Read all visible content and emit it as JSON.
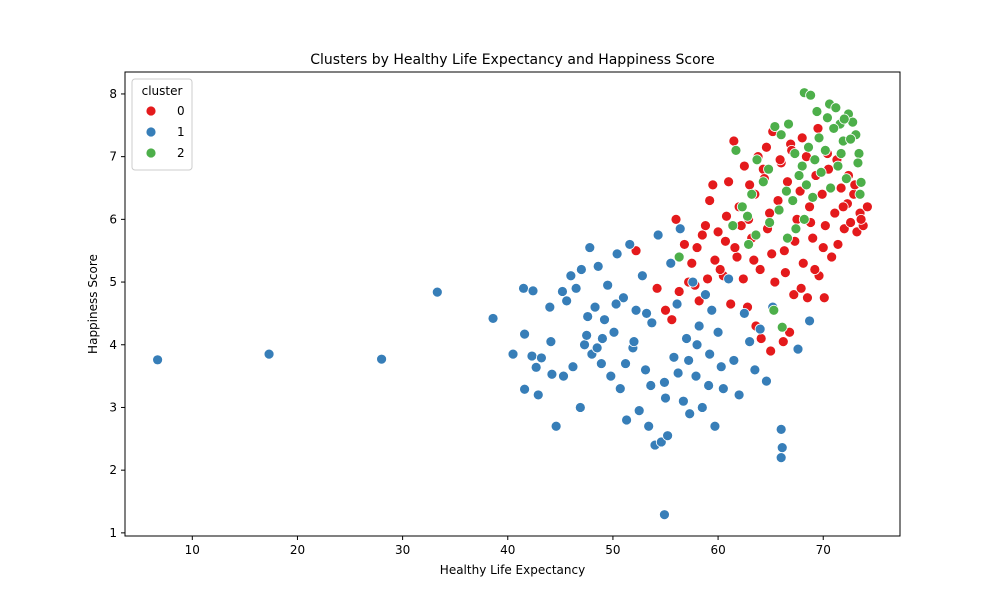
{
  "chart_data": {
    "type": "scatter",
    "title": "Clusters by Healthy Life Expectancy and Happiness Score",
    "xlabel": "Healthy Life Expectancy",
    "ylabel": "Happiness Score",
    "xlim": [
      3.6,
      77.3
    ],
    "ylim": [
      0.95,
      8.35
    ],
    "xticks": [
      10,
      20,
      30,
      40,
      50,
      60,
      70
    ],
    "yticks": [
      1,
      2,
      3,
      4,
      5,
      6,
      7,
      8
    ],
    "grid": false,
    "legend": {
      "title": "cluster",
      "placement": "top-left",
      "entries": [
        "0",
        "1",
        "2"
      ]
    },
    "colors": {
      "0": "#e41a1c",
      "1": "#377eb8",
      "2": "#4daf4a"
    },
    "series": [
      {
        "name": "0",
        "points": [
          [
            52.2,
            5.5
          ],
          [
            56.0,
            6.0
          ],
          [
            56.8,
            5.6
          ],
          [
            54.2,
            4.9
          ],
          [
            55.0,
            4.55
          ],
          [
            57.5,
            5.3
          ],
          [
            58.0,
            5.55
          ],
          [
            58.8,
            5.9
          ],
          [
            59.2,
            6.3
          ],
          [
            59.5,
            6.55
          ],
          [
            60.0,
            5.8
          ],
          [
            60.5,
            5.1
          ],
          [
            61.0,
            6.6
          ],
          [
            61.5,
            7.25
          ],
          [
            61.8,
            5.4
          ],
          [
            62.0,
            6.2
          ],
          [
            62.5,
            6.85
          ],
          [
            62.9,
            6.0
          ],
          [
            63.2,
            5.7
          ],
          [
            63.5,
            6.4
          ],
          [
            63.8,
            7.0
          ],
          [
            64.0,
            5.2
          ],
          [
            64.3,
            6.8
          ],
          [
            64.6,
            7.15
          ],
          [
            64.9,
            6.1
          ],
          [
            65.2,
            7.4
          ],
          [
            65.4,
            5.0
          ],
          [
            65.7,
            6.3
          ],
          [
            66.0,
            6.9
          ],
          [
            66.3,
            5.5
          ],
          [
            66.6,
            6.6
          ],
          [
            66.9,
            7.2
          ],
          [
            67.2,
            4.8
          ],
          [
            67.5,
            6.0
          ],
          [
            67.8,
            6.45
          ],
          [
            68.1,
            5.3
          ],
          [
            68.4,
            7.0
          ],
          [
            68.7,
            6.2
          ],
          [
            69.0,
            5.7
          ],
          [
            69.3,
            6.7
          ],
          [
            69.6,
            5.1
          ],
          [
            69.9,
            6.4
          ],
          [
            70.2,
            5.9
          ],
          [
            70.5,
            6.8
          ],
          [
            70.8,
            5.4
          ],
          [
            71.1,
            6.1
          ],
          [
            71.4,
            5.6
          ],
          [
            71.7,
            6.5
          ],
          [
            72.0,
            5.85
          ],
          [
            72.3,
            6.25
          ],
          [
            72.6,
            5.95
          ],
          [
            72.9,
            6.4
          ],
          [
            73.2,
            5.8
          ],
          [
            73.5,
            6.1
          ],
          [
            73.8,
            5.9
          ],
          [
            74.2,
            6.2
          ],
          [
            73.6,
            6.0
          ],
          [
            64.1,
            4.1
          ],
          [
            65.0,
            3.9
          ],
          [
            66.2,
            4.05
          ],
          [
            63.6,
            4.3
          ],
          [
            62.8,
            4.6
          ],
          [
            61.2,
            4.65
          ],
          [
            60.2,
            5.2
          ],
          [
            59.0,
            5.05
          ],
          [
            58.2,
            4.7
          ],
          [
            57.2,
            5.0
          ],
          [
            56.3,
            4.85
          ],
          [
            55.6,
            4.4
          ],
          [
            66.8,
            4.2
          ],
          [
            67.9,
            4.9
          ],
          [
            68.5,
            4.75
          ],
          [
            69.2,
            5.2
          ],
          [
            70.1,
            4.75
          ],
          [
            63.0,
            6.55
          ],
          [
            64.4,
            6.65
          ],
          [
            65.9,
            6.95
          ],
          [
            67.0,
            7.1
          ],
          [
            68.0,
            7.3
          ],
          [
            69.5,
            7.45
          ],
          [
            70.4,
            7.05
          ],
          [
            71.3,
            6.95
          ],
          [
            72.4,
            6.7
          ],
          [
            62.2,
            5.9
          ],
          [
            61.6,
            5.55
          ],
          [
            60.8,
            6.05
          ],
          [
            65.1,
            5.45
          ],
          [
            66.4,
            5.15
          ],
          [
            67.3,
            5.65
          ],
          [
            68.8,
            5.95
          ],
          [
            70.0,
            5.55
          ],
          [
            71.9,
            6.2
          ],
          [
            73.0,
            6.55
          ],
          [
            64.7,
            5.85
          ],
          [
            63.4,
            5.35
          ],
          [
            62.4,
            5.05
          ],
          [
            60.7,
            5.65
          ],
          [
            59.7,
            5.35
          ],
          [
            58.5,
            5.75
          ],
          [
            57.8,
            4.95
          ]
        ]
      },
      {
        "name": "1",
        "points": [
          [
            6.7,
            3.76
          ],
          [
            17.3,
            3.85
          ],
          [
            28.0,
            3.77
          ],
          [
            33.3,
            4.84
          ],
          [
            38.6,
            4.42
          ],
          [
            40.5,
            3.85
          ],
          [
            41.5,
            4.9
          ],
          [
            41.6,
            4.17
          ],
          [
            41.6,
            3.29
          ],
          [
            42.4,
            4.86
          ],
          [
            42.3,
            3.82
          ],
          [
            42.7,
            3.64
          ],
          [
            42.9,
            3.2
          ],
          [
            43.2,
            3.79
          ],
          [
            44.0,
            4.6
          ],
          [
            44.1,
            4.05
          ],
          [
            44.2,
            3.53
          ],
          [
            44.6,
            2.7
          ],
          [
            45.2,
            4.85
          ],
          [
            45.3,
            3.5
          ],
          [
            45.6,
            4.7
          ],
          [
            46.0,
            5.1
          ],
          [
            46.2,
            3.65
          ],
          [
            46.5,
            4.9
          ],
          [
            46.9,
            3.0
          ],
          [
            47.0,
            5.2
          ],
          [
            47.3,
            4.0
          ],
          [
            47.5,
            4.15
          ],
          [
            47.8,
            5.55
          ],
          [
            48.0,
            3.85
          ],
          [
            48.3,
            4.6
          ],
          [
            48.6,
            5.25
          ],
          [
            48.9,
            3.7
          ],
          [
            49.2,
            4.4
          ],
          [
            49.5,
            4.95
          ],
          [
            49.8,
            3.5
          ],
          [
            50.1,
            4.2
          ],
          [
            50.4,
            5.45
          ],
          [
            50.7,
            3.3
          ],
          [
            51.0,
            4.75
          ],
          [
            51.3,
            2.8
          ],
          [
            51.6,
            5.6
          ],
          [
            51.9,
            3.95
          ],
          [
            52.2,
            4.55
          ],
          [
            52.5,
            2.95
          ],
          [
            52.8,
            5.1
          ],
          [
            53.1,
            3.6
          ],
          [
            53.4,
            2.7
          ],
          [
            53.7,
            4.35
          ],
          [
            54.0,
            2.4
          ],
          [
            54.3,
            5.75
          ],
          [
            54.6,
            2.45
          ],
          [
            54.9,
            3.4
          ],
          [
            55.2,
            2.55
          ],
          [
            55.5,
            5.3
          ],
          [
            55.8,
            3.8
          ],
          [
            56.1,
            4.65
          ],
          [
            56.4,
            5.85
          ],
          [
            56.7,
            3.1
          ],
          [
            57.0,
            4.1
          ],
          [
            57.3,
            2.9
          ],
          [
            57.6,
            5.0
          ],
          [
            57.9,
            3.5
          ],
          [
            58.2,
            4.3
          ],
          [
            58.5,
            3.0
          ],
          [
            58.8,
            4.8
          ],
          [
            59.1,
            3.35
          ],
          [
            59.4,
            4.55
          ],
          [
            59.7,
            2.7
          ],
          [
            60.0,
            4.2
          ],
          [
            60.5,
            3.3
          ],
          [
            61.0,
            5.05
          ],
          [
            61.5,
            3.75
          ],
          [
            62.0,
            3.2
          ],
          [
            62.5,
            4.5
          ],
          [
            63.0,
            4.05
          ],
          [
            63.5,
            3.6
          ],
          [
            64.0,
            4.25
          ],
          [
            64.6,
            3.42
          ],
          [
            65.2,
            4.6
          ],
          [
            66.0,
            2.65
          ],
          [
            66.1,
            2.36
          ],
          [
            66.0,
            2.2
          ],
          [
            54.9,
            1.29
          ],
          [
            67.6,
            3.93
          ],
          [
            68.7,
            4.38
          ],
          [
            53.2,
            4.5
          ],
          [
            52.0,
            4.05
          ],
          [
            51.2,
            3.7
          ],
          [
            50.3,
            4.65
          ],
          [
            49.0,
            4.1
          ],
          [
            48.5,
            3.95
          ],
          [
            47.6,
            4.45
          ],
          [
            53.6,
            3.35
          ],
          [
            55.0,
            3.15
          ],
          [
            56.2,
            3.55
          ],
          [
            57.2,
            3.75
          ],
          [
            58.0,
            4.0
          ],
          [
            59.2,
            3.85
          ],
          [
            60.3,
            3.65
          ]
        ]
      },
      {
        "name": "2",
        "points": [
          [
            68.2,
            8.02
          ],
          [
            68.8,
            7.98
          ],
          [
            70.6,
            7.84
          ],
          [
            71.2,
            7.78
          ],
          [
            71.6,
            7.52
          ],
          [
            72.4,
            7.68
          ],
          [
            72.8,
            7.55
          ],
          [
            73.1,
            7.35
          ],
          [
            73.4,
            7.05
          ],
          [
            73.3,
            6.9
          ],
          [
            73.6,
            6.59
          ],
          [
            73.5,
            6.4
          ],
          [
            72.0,
            7.6
          ],
          [
            71.9,
            7.25
          ],
          [
            71.0,
            7.45
          ],
          [
            70.2,
            7.1
          ],
          [
            69.6,
            7.3
          ],
          [
            69.2,
            6.95
          ],
          [
            68.6,
            7.15
          ],
          [
            68.0,
            6.85
          ],
          [
            67.3,
            7.05
          ],
          [
            66.7,
            7.52
          ],
          [
            66.0,
            7.35
          ],
          [
            65.4,
            7.48
          ],
          [
            64.8,
            6.8
          ],
          [
            64.3,
            6.6
          ],
          [
            63.7,
            6.95
          ],
          [
            63.2,
            6.4
          ],
          [
            62.8,
            6.05
          ],
          [
            62.3,
            6.2
          ],
          [
            61.7,
            7.1
          ],
          [
            61.4,
            5.9
          ],
          [
            62.9,
            5.6
          ],
          [
            63.6,
            5.75
          ],
          [
            64.9,
            5.95
          ],
          [
            65.8,
            6.15
          ],
          [
            66.5,
            6.45
          ],
          [
            67.1,
            6.3
          ],
          [
            67.7,
            6.7
          ],
          [
            68.4,
            6.55
          ],
          [
            69.0,
            6.35
          ],
          [
            69.8,
            6.75
          ],
          [
            70.7,
            6.5
          ],
          [
            71.4,
            6.85
          ],
          [
            72.2,
            6.65
          ],
          [
            68.2,
            6.0
          ],
          [
            67.4,
            5.85
          ],
          [
            66.6,
            5.7
          ],
          [
            56.3,
            5.4
          ],
          [
            66.1,
            4.28
          ],
          [
            65.3,
            4.55
          ],
          [
            70.4,
            7.62
          ],
          [
            69.4,
            7.72
          ],
          [
            72.6,
            7.28
          ],
          [
            71.7,
            7.05
          ]
        ]
      }
    ]
  }
}
